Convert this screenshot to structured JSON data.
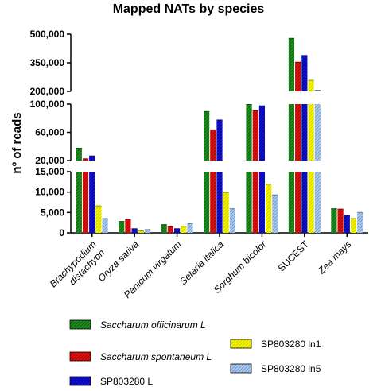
{
  "chart_data": {
    "type": "bar",
    "title": "Mapped NATs by species",
    "ylabel": "nº of reads",
    "xlabel": "",
    "y_axis_segments": [
      {
        "range": [
          0,
          15000
        ],
        "ticks": [
          0,
          5000,
          10000,
          15000
        ],
        "tick_labels": [
          "0",
          "5,000",
          "10,000",
          "15,000"
        ]
      },
      {
        "range": [
          20000,
          100000
        ],
        "ticks": [
          20000,
          60000,
          100000
        ],
        "tick_labels": [
          "20,000",
          "60,000",
          "100,000"
        ]
      },
      {
        "range": [
          200000,
          500000
        ],
        "ticks": [
          200000,
          350000,
          500000
        ],
        "tick_labels": [
          "200,000",
          "350,000",
          "500,000"
        ]
      }
    ],
    "categories": [
      {
        "label": "Brachypodium distachyon",
        "lines": [
          "Brachypodium",
          "distachyon"
        ],
        "italic": true
      },
      {
        "label": "Oryza sativa",
        "lines": [
          "Oryza sativa"
        ],
        "italic": true
      },
      {
        "label": "Panicum virgatum",
        "lines": [
          "Panicum virgatum"
        ],
        "italic": true
      },
      {
        "label": "Setaria italica",
        "lines": [
          "Setaria italica"
        ],
        "italic": true
      },
      {
        "label": "Sorghum bicolor",
        "lines": [
          "Sorghum bicolor"
        ],
        "italic": true
      },
      {
        "label": "SUCEST",
        "lines": [
          "SUCEST"
        ],
        "italic": false
      },
      {
        "label": "Zea mays",
        "lines": [
          "Zea mays"
        ],
        "italic": true
      }
    ],
    "series": [
      {
        "name": "Saccharum officinarum L",
        "italic": true,
        "color": "#1e8c1e",
        "values": [
          38000,
          2900,
          2100,
          90000,
          100000,
          480000,
          6000
        ]
      },
      {
        "name": "Saccharum spontaneum L",
        "italic": true,
        "color": "#e01010",
        "values": [
          23000,
          3400,
          1600,
          64000,
          91000,
          355000,
          5900
        ]
      },
      {
        "name": "SP803280 L",
        "italic": false,
        "color": "#1010d0",
        "values": [
          27000,
          1100,
          1100,
          78000,
          98000,
          390000,
          4400
        ]
      },
      {
        "name": "SP803280 ln1",
        "italic": false,
        "color": "#f5f500",
        "values": [
          6700,
          600,
          1700,
          10000,
          12000,
          260000,
          3600
        ]
      },
      {
        "name": "SP803280 ln5",
        "italic": false,
        "color": "#a8c8f0",
        "values": [
          3600,
          900,
          2400,
          6000,
          9400,
          208000,
          5100
        ]
      }
    ],
    "legend_position": "bottom",
    "grid": false
  }
}
